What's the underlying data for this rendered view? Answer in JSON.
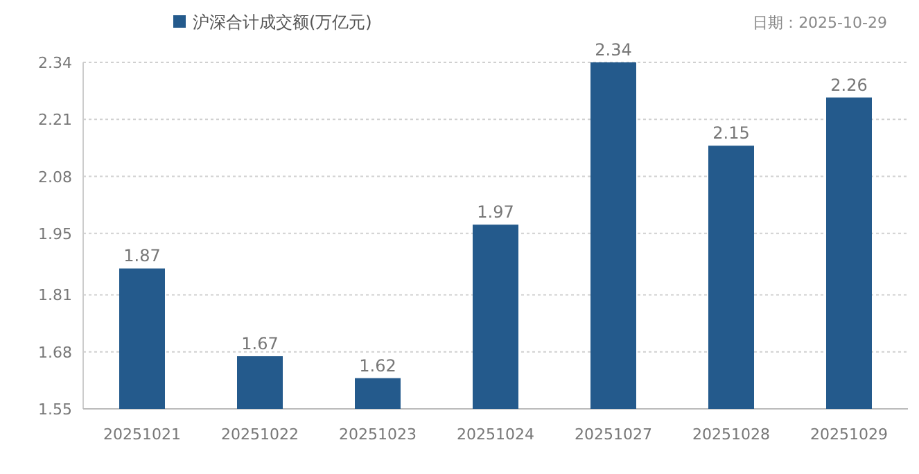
{
  "chart_data": {
    "type": "bar",
    "categories": [
      "20251021",
      "20251022",
      "20251023",
      "20251024",
      "20251027",
      "20251028",
      "20251029"
    ],
    "series": [
      {
        "name": "沪深合计成交额(万亿元)",
        "color": "#245a8c",
        "values": [
          1.87,
          1.67,
          1.62,
          1.97,
          2.34,
          2.15,
          2.26
        ]
      }
    ],
    "ylim": [
      1.55,
      2.34
    ],
    "yticks": [
      1.55,
      1.68,
      1.81,
      1.95,
      2.08,
      2.21,
      2.34
    ],
    "grid": "y",
    "legend": "top",
    "data_labels": true,
    "annotations": [
      "日期：2025-10-29"
    ]
  }
}
